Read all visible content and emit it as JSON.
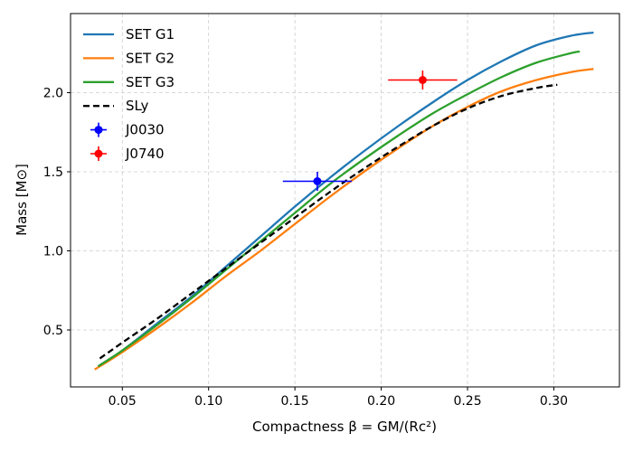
{
  "chart_data": {
    "type": "line",
    "xlabel": "Compactness β = GM/(Rc²)",
    "ylabel": "Mass [M⊙]",
    "xlim": [
      0.02,
      0.338
    ],
    "ylim": [
      0.14,
      2.5
    ],
    "xticks": [
      0.05,
      0.1,
      0.15,
      0.2,
      0.25,
      0.3
    ],
    "xtick_labels": [
      "0.05",
      "0.10",
      "0.15",
      "0.20",
      "0.25",
      "0.30"
    ],
    "yticks": [
      0.5,
      1.0,
      1.5,
      2.0
    ],
    "ytick_labels": [
      "0.5",
      "1.0",
      "1.5",
      "2.0"
    ],
    "grid": true,
    "legend_position": "top-left",
    "series": [
      {
        "name": "SET G1",
        "color": "#1f77b4",
        "style": "solid",
        "x": [
          0.036,
          0.05,
          0.07,
          0.09,
          0.11,
          0.13,
          0.15,
          0.17,
          0.19,
          0.21,
          0.23,
          0.25,
          0.27,
          0.29,
          0.31,
          0.323
        ],
        "y": [
          0.27,
          0.37,
          0.54,
          0.71,
          0.9,
          1.09,
          1.28,
          1.46,
          1.63,
          1.79,
          1.94,
          2.08,
          2.2,
          2.3,
          2.36,
          2.38
        ]
      },
      {
        "name": "SET G2",
        "color": "#ff7f0e",
        "style": "solid",
        "x": [
          0.034,
          0.05,
          0.07,
          0.09,
          0.11,
          0.13,
          0.15,
          0.17,
          0.19,
          0.21,
          0.23,
          0.25,
          0.27,
          0.29,
          0.31,
          0.323
        ],
        "y": [
          0.25,
          0.36,
          0.51,
          0.67,
          0.84,
          1.0,
          1.17,
          1.34,
          1.5,
          1.65,
          1.79,
          1.91,
          2.01,
          2.08,
          2.13,
          2.15
        ]
      },
      {
        "name": "SET G3",
        "color": "#2ca02c",
        "style": "solid",
        "x": [
          0.036,
          0.05,
          0.07,
          0.09,
          0.11,
          0.13,
          0.15,
          0.17,
          0.19,
          0.21,
          0.23,
          0.25,
          0.27,
          0.29,
          0.31,
          0.315
        ],
        "y": [
          0.27,
          0.37,
          0.53,
          0.7,
          0.88,
          1.06,
          1.24,
          1.42,
          1.58,
          1.73,
          1.87,
          1.99,
          2.1,
          2.19,
          2.25,
          2.26
        ]
      },
      {
        "name": "SLy",
        "color": "#000000",
        "style": "dashed",
        "x": [
          0.037,
          0.05,
          0.07,
          0.09,
          0.11,
          0.13,
          0.15,
          0.17,
          0.19,
          0.21,
          0.23,
          0.25,
          0.27,
          0.29,
          0.302
        ],
        "y": [
          0.32,
          0.42,
          0.57,
          0.73,
          0.89,
          1.05,
          1.21,
          1.37,
          1.52,
          1.66,
          1.79,
          1.9,
          1.98,
          2.03,
          2.05
        ]
      }
    ],
    "points": [
      {
        "name": "J0030",
        "color": "#0000ff",
        "x": 0.163,
        "y": 1.44,
        "xerr": 0.02,
        "yerr": 0.06
      },
      {
        "name": "J0740",
        "color": "#ff0000",
        "x": 0.224,
        "y": 2.08,
        "xerr": 0.02,
        "yerr": 0.06
      }
    ]
  }
}
